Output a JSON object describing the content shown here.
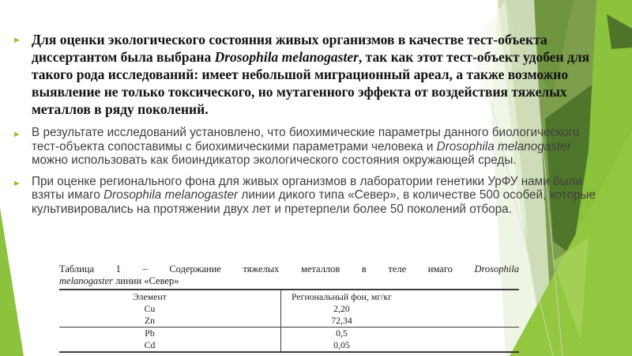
{
  "slide": {
    "bullets": [
      {
        "marker": "►",
        "segments": [
          {
            "t": "Для оценки экологического состояния живых организмов в качестве тест-объекта диссертантом была выбрана "
          },
          {
            "t": "Drosophila melanogaster",
            "i": true
          },
          {
            "t": ", так как этот тест-объект удобен для такого рода исследований: имеет небольшой миграционный ареал, а также возможно выявление не только токсического, но мутагенного эффекта от воздействия тяжелых металлов в ряду поколений."
          }
        ]
      },
      {
        "marker": "►",
        "segments": [
          {
            "t": "В результате исследований установлено, что биохимические параметры данного биологического тест-объекта сопоставимы с биохимическими параметрами человека и "
          },
          {
            "t": "Drosophila melanogaster",
            "i": true
          },
          {
            "t": " можно использовать как биоиндикатор экологического состояния окружающей среды."
          }
        ]
      },
      {
        "marker": "►",
        "segments": [
          {
            "t": "При оценке регионального фона для живых организмов в лаборатории генетики УрФУ нами были взяты имаго "
          },
          {
            "t": "Drosophila melanogaster",
            "i": true
          },
          {
            "t": " линии дикого типа «Север», в количестве 500 особей, которые культивировались на протяжении двух лет и претерпели более 50 поколений отбора."
          }
        ]
      }
    ],
    "table": {
      "caption_line1_segments": [
        {
          "t": "Таблица 1 – Содержание тяжелых металлов в теле имаго "
        },
        {
          "t": "Drosophila",
          "i": true
        }
      ],
      "caption_line2_segments": [
        {
          "t": "melanogaster",
          "i": true
        },
        {
          "t": " линии «Север»"
        }
      ],
      "columns": [
        "Элемент",
        "Региональный фон, мг/кг"
      ],
      "rows": [
        {
          "element": "Cu",
          "value": "2,20"
        },
        {
          "element": "Zn",
          "value": "72,34"
        },
        {
          "element": "Pb",
          "value": "0,5"
        },
        {
          "element": "Cd",
          "value": "0,05"
        }
      ]
    },
    "colors": {
      "bright_green": "#8CC23C",
      "bright_green2": "#93C73F",
      "mid_green": "#7C9E4D",
      "mid_green2": "#6F9440",
      "dark_green": "#4F772B",
      "dark_green2": "#4E7429",
      "pale_green": "#E9F2DB",
      "pale_green2": "#F1F7E7",
      "light_green": "#A8D45F",
      "marker_green": "#90C226",
      "table_line": "#3C3C3C"
    }
  }
}
